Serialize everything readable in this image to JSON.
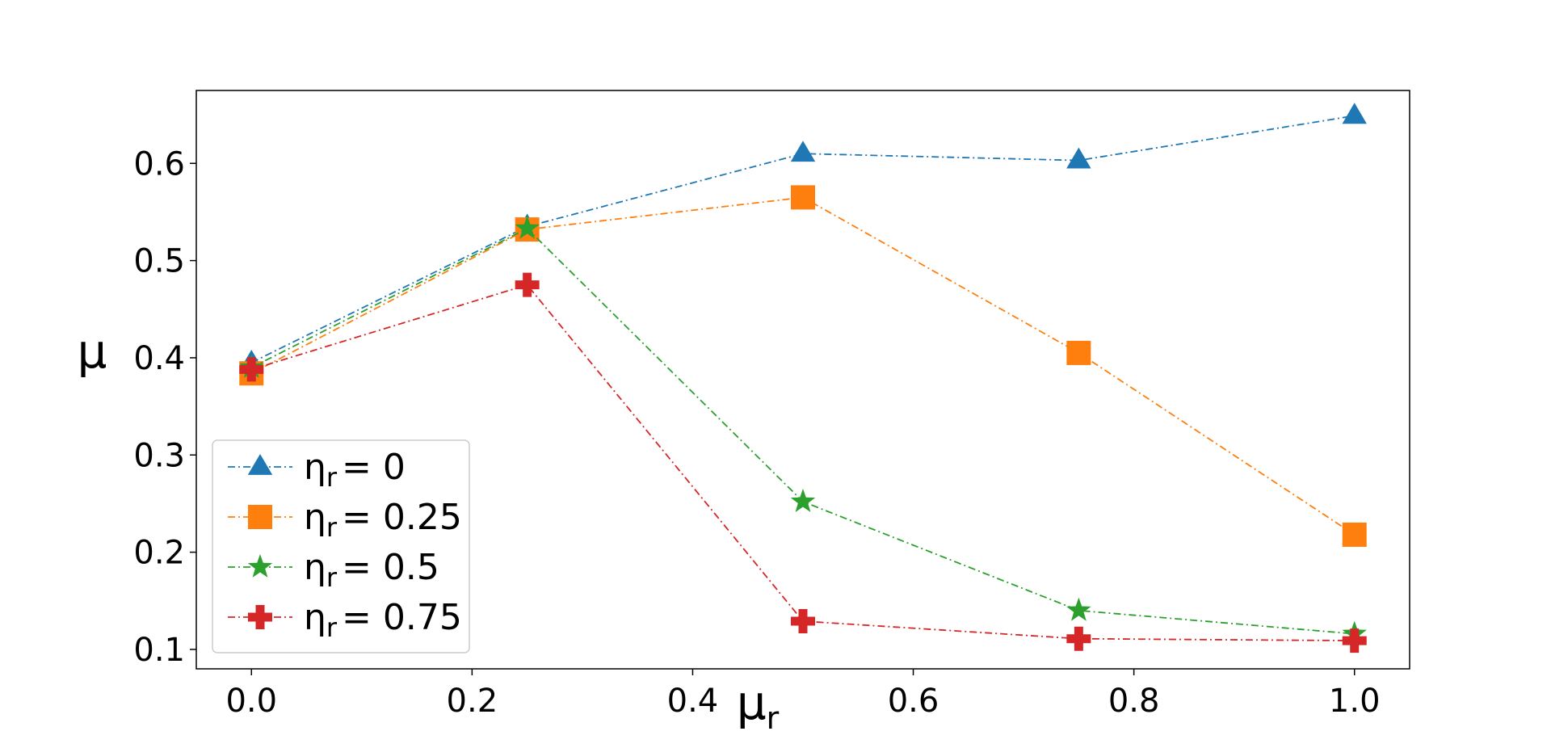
{
  "chart_data": {
    "type": "line",
    "title": "",
    "xlabel": "μ",
    "xlabel_sub": "r",
    "ylabel": "μ",
    "xlim": [
      -0.05,
      1.05
    ],
    "ylim": [
      0.08,
      0.675
    ],
    "xticks": [
      0.0,
      0.2,
      0.4,
      0.6,
      0.8,
      1.0
    ],
    "xtick_labels": [
      "0.0",
      "0.2",
      "0.4",
      "0.6",
      "0.8",
      "1.0"
    ],
    "yticks": [
      0.1,
      0.2,
      0.3,
      0.4,
      0.5,
      0.6
    ],
    "ytick_labels": [
      "0.1",
      "0.2",
      "0.3",
      "0.4",
      "0.5",
      "0.6"
    ],
    "grid": false,
    "legend_position": "lower-left",
    "x": [
      0.0,
      0.25,
      0.5,
      0.75,
      1.0
    ],
    "series": [
      {
        "name": "η",
        "name_sub": "r",
        "name_rest": "= 0",
        "marker": "triangle",
        "color": "#1f77b4",
        "values": [
          0.395,
          0.535,
          0.61,
          0.603,
          0.649
        ]
      },
      {
        "name": "η",
        "name_sub": "r",
        "name_rest": "= 0.25",
        "marker": "square",
        "color": "#ff7f0e",
        "values": [
          0.384,
          0.532,
          0.565,
          0.405,
          0.218
        ]
      },
      {
        "name": "η",
        "name_sub": "r",
        "name_rest": "= 0.5",
        "marker": "star",
        "color": "#2ca02c",
        "values": [
          0.39,
          0.533,
          0.252,
          0.14,
          0.116
        ]
      },
      {
        "name": "η",
        "name_sub": "r",
        "name_rest": "= 0.75",
        "marker": "plus",
        "color": "#d62728",
        "values": [
          0.388,
          0.475,
          0.129,
          0.111,
          0.109
        ]
      }
    ]
  }
}
